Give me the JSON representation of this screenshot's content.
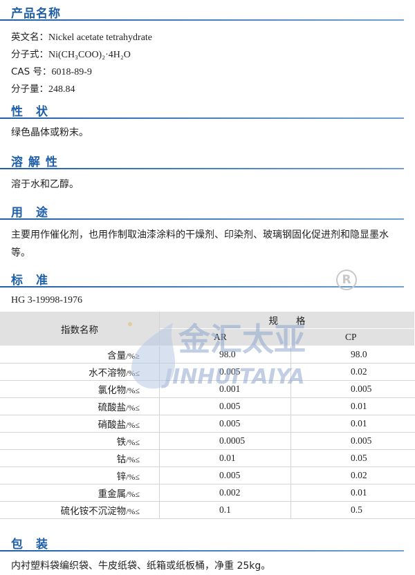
{
  "sections": {
    "name": "产品名称",
    "properties": "性　状",
    "solubility": "溶 解 性",
    "use": "用　途",
    "standard": "标　准",
    "packaging": "包　装"
  },
  "product": {
    "english_label": "英文名：",
    "english_value": "Nickel acetate tetrahydrate",
    "formula_label": "分子式：",
    "formula_value": "Ni(CH₃COO)₂·4H₂O",
    "cas_label": "CAS 号：",
    "cas_value": "6018-89-9",
    "mw_label": "分子量：",
    "mw_value": "248.84"
  },
  "properties_text": "绿色晶体或粉末。",
  "solubility_text": "溶于水和乙醇。",
  "use_text": "主要用作催化剂，也用作制取油漆涂料的干燥剂、印染剂、玻璃钢固化促进剂和隐显墨水等。",
  "standard_code": "HG 3-19998-1976",
  "table": {
    "header_name": "指数名称",
    "header_group": "规格",
    "col_ar": "AR",
    "col_cp": "CP",
    "rows": [
      {
        "name": "含量",
        "unit": "/%≥",
        "ar": "98.0",
        "cp": "98.0"
      },
      {
        "name": "水不溶物",
        "unit": "/%≤",
        "ar": "0.005",
        "cp": "0.02"
      },
      {
        "name": "氯化物",
        "unit": "/%≤",
        "ar": "0.001",
        "cp": "0.005"
      },
      {
        "name": "硫酸盐",
        "unit": "/%≤",
        "ar": "0.005",
        "cp": "0.01"
      },
      {
        "name": "硝酸盐",
        "unit": "/%≤",
        "ar": "0.005",
        "cp": "0.01"
      },
      {
        "name": "铁",
        "unit": "/%≤",
        "ar": "0.0005",
        "cp": "0.005"
      },
      {
        "name": "钴",
        "unit": "/%≤",
        "ar": "0.01",
        "cp": "0.05"
      },
      {
        "name": "锌",
        "unit": "/%≤",
        "ar": "0.005",
        "cp": "0.02"
      },
      {
        "name": "重金属",
        "unit": "/%≤",
        "ar": "0.002",
        "cp": "0.01"
      },
      {
        "name": "硫化铵不沉淀物",
        "unit": "/%≤",
        "ar": "0.1",
        "cp": "0.5"
      }
    ]
  },
  "packaging_text": "内衬塑料袋编织袋、牛皮纸袋、纸箱或纸板桶，净重 25kg。",
  "watermark": {
    "chinese": "金汇太亚",
    "english": "JINHUITAIYA"
  },
  "colors": {
    "heading": "#1f5fa8",
    "table_header": "#e1e1e1",
    "watermark": "#8fa7cf"
  }
}
